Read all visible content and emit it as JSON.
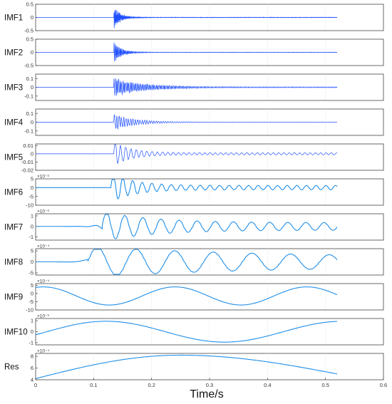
{
  "figure": {
    "xlabel": "Time/s",
    "xlim": [
      0,
      0.6
    ],
    "x_tick_labels": [
      "0",
      "0.1",
      "0.2",
      "0.3",
      "0.4",
      "0.5",
      "0.6"
    ],
    "signal_color": "#1f4fff",
    "signal_color_smooth": "#1f8ee8"
  },
  "chart_data": [
    {
      "type": "line",
      "name": "IMF1",
      "exponent": "",
      "ylim": [
        -0.5,
        0.5
      ],
      "ytick_labels": [
        "0.5",
        "0",
        "-0.5"
      ],
      "yticks": [
        0.5,
        0,
        -0.5
      ],
      "signal": {
        "kind": "burst",
        "onset": 0.135,
        "end": 0.52,
        "amplitude": 0.45,
        "decay": 0.012,
        "floor": 0.01,
        "cycles_per_s": 900
      }
    },
    {
      "type": "line",
      "name": "IMF2",
      "exponent": "",
      "ylim": [
        -0.5,
        0.5
      ],
      "ytick_labels": [
        "0.5",
        "0",
        "-0.5"
      ],
      "yticks": [
        0.5,
        0,
        -0.5
      ],
      "signal": {
        "kind": "burst",
        "onset": 0.135,
        "end": 0.52,
        "amplitude": 0.4,
        "decay": 0.014,
        "floor": 0.01,
        "cycles_per_s": 600
      }
    },
    {
      "type": "line",
      "name": "IMF3",
      "exponent": "",
      "ylim": [
        -0.15,
        0.15
      ],
      "ytick_labels": [
        "0.1",
        "0",
        "-0.1"
      ],
      "yticks": [
        0.1,
        0,
        -0.1
      ],
      "signal": {
        "kind": "burst",
        "onset": 0.135,
        "end": 0.52,
        "amplitude": 0.11,
        "decay": 0.05,
        "floor": 0.006,
        "cycles_per_s": 400
      }
    },
    {
      "type": "line",
      "name": "IMF4",
      "exponent": "",
      "ylim": [
        -0.15,
        0.15
      ],
      "ytick_labels": [
        "0.1",
        "0",
        "-0.1"
      ],
      "yticks": [
        0.1,
        0,
        -0.1
      ],
      "signal": {
        "kind": "burst",
        "onset": 0.135,
        "end": 0.52,
        "amplitude": 0.1,
        "decay": 0.035,
        "floor": 0.003,
        "cycles_per_s": 250
      }
    },
    {
      "type": "line",
      "name": "IMF5",
      "exponent": "",
      "ylim": [
        -0.02,
        0.012
      ],
      "ytick_labels": [
        "0.01",
        "0",
        "-0.01",
        "-0.02"
      ],
      "yticks": [
        0.01,
        0,
        -0.01,
        -0.02
      ],
      "signal": {
        "kind": "burst",
        "onset": 0.135,
        "end": 0.52,
        "amplitude": 0.013,
        "decay": 0.03,
        "floor": 0.0012,
        "cycles_per_s": 110
      }
    },
    {
      "type": "line",
      "name": "IMF6",
      "exponent": "×10⁻³",
      "ylim": [
        -10,
        5
      ],
      "ytick_labels": [
        "5",
        "0",
        "-5",
        "-10"
      ],
      "yticks": [
        5,
        0,
        -5,
        -10
      ],
      "signal": {
        "kind": "burst",
        "onset": 0.13,
        "end": 0.52,
        "amplitude": 7,
        "decay": 0.04,
        "floor": 1.2,
        "cycles_per_s": 60
      }
    },
    {
      "type": "line",
      "name": "IMF7",
      "exponent": "×10⁻³",
      "ylim": [
        -1.3,
        1.2
      ],
      "ytick_labels": [
        "1",
        "0",
        "-1"
      ],
      "yticks": [
        1,
        0,
        -1
      ],
      "signal": {
        "kind": "burst",
        "onset": 0.115,
        "end": 0.52,
        "amplitude": 1.05,
        "decay": 0.09,
        "floor": 0.35,
        "cycles_per_s": 32
      }
    },
    {
      "type": "line",
      "name": "IMF8",
      "exponent": "×10⁻⁴",
      "ylim": [
        -6,
        6
      ],
      "ytick_labels": [
        "5",
        "0",
        "-5"
      ],
      "yticks": [
        5,
        0,
        -5
      ],
      "signal": {
        "kind": "burst",
        "onset": 0.09,
        "end": 0.52,
        "amplitude": 5,
        "decay": 0.3,
        "floor": 2,
        "cycles_per_s": 15
      }
    },
    {
      "type": "line",
      "name": "IMF9",
      "exponent": "×10⁻⁴",
      "ylim": [
        -10,
        6
      ],
      "ytick_labels": [
        "5",
        "0",
        "-5",
        "-10"
      ],
      "yticks": [
        5,
        0,
        -5,
        -10
      ],
      "signal": {
        "kind": "wave",
        "end": 0.52,
        "offset": -1.5,
        "amplitude": 5.5,
        "cycles_per_s": 4.4,
        "phase": 1.2
      }
    },
    {
      "type": "line",
      "name": "IMF10",
      "exponent": "×10⁻³",
      "ylim": [
        -1.2,
        1.2
      ],
      "ytick_labels": [
        "1",
        "0",
        "-1"
      ],
      "yticks": [
        1,
        0,
        -1
      ],
      "signal": {
        "kind": "wave",
        "end": 0.52,
        "offset": 0,
        "amplitude": 0.95,
        "cycles_per_s": 2.45,
        "phase": -0.3
      }
    },
    {
      "type": "line",
      "name": "Res",
      "exponent": "×10⁻⁴",
      "ylim": [
        4,
        8.5
      ],
      "ytick_labels": [
        "8",
        "6",
        "4"
      ],
      "yticks": [
        8,
        6,
        4
      ],
      "signal": {
        "kind": "arc",
        "end": 0.52,
        "start_value": 4.2,
        "peak_value": 8.2,
        "peak_x": 0.25,
        "end_value": 5.0
      }
    }
  ]
}
